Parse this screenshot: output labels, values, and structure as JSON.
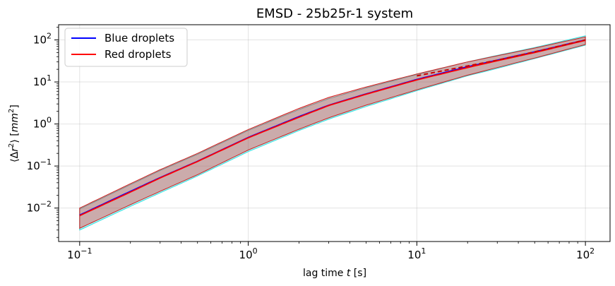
{
  "chart_data": {
    "type": "line",
    "title": "EMSD - 25b25r-1 system",
    "xlabel": "lag time t [s]",
    "ylabel": "⟨Δr²⟩ [mm²]",
    "xscale": "log",
    "yscale": "log",
    "xlim": [
      0.075,
      140
    ],
    "ylim": [
      0.0016,
      230
    ],
    "xticks": [
      {
        "value": 0.1,
        "base": "10",
        "exp": "−1"
      },
      {
        "value": 1,
        "base": "10",
        "exp": "0"
      },
      {
        "value": 10,
        "base": "10",
        "exp": "1"
      },
      {
        "value": 100,
        "base": "10",
        "exp": "2"
      }
    ],
    "yticks": [
      {
        "value": 0.01,
        "base": "10",
        "exp": "−2"
      },
      {
        "value": 0.1,
        "base": "10",
        "exp": "−1"
      },
      {
        "value": 1,
        "base": "10",
        "exp": "0"
      },
      {
        "value": 10,
        "base": "10",
        "exp": "1"
      },
      {
        "value": 100,
        "base": "10",
        "exp": "2"
      }
    ],
    "grid": true,
    "legend_position": "top-left",
    "x": [
      0.1,
      0.2,
      0.3,
      0.5,
      1,
      2,
      3,
      5,
      10,
      20,
      30,
      50,
      100
    ],
    "series": [
      {
        "name": "Blue droplets",
        "color": "#0000ff",
        "values": [
          0.0068,
          0.025,
          0.053,
          0.13,
          0.48,
          1.5,
          2.8,
          5.2,
          11.5,
          23,
          33,
          52,
          100
        ],
        "band_lower": [
          0.003,
          0.011,
          0.023,
          0.058,
          0.22,
          0.7,
          1.3,
          2.6,
          6.2,
          14,
          21,
          36,
          75
        ],
        "band_upper": [
          0.0095,
          0.036,
          0.078,
          0.19,
          0.7,
          2.2,
          4.0,
          7.2,
          15,
          30,
          43,
          66,
          125
        ],
        "band_color": "#00ffff"
      },
      {
        "name": "Red droplets",
        "color": "#ff0000",
        "values": [
          0.0066,
          0.024,
          0.052,
          0.128,
          0.47,
          1.45,
          2.75,
          5.1,
          11.2,
          22,
          32,
          50,
          98
        ],
        "band_lower": [
          0.0033,
          0.012,
          0.025,
          0.062,
          0.24,
          0.75,
          1.4,
          2.8,
          6.5,
          14.5,
          22,
          37,
          78
        ],
        "band_upper": [
          0.01,
          0.038,
          0.082,
          0.2,
          0.74,
          2.35,
          4.3,
          7.6,
          15.5,
          30,
          42,
          64,
          118
        ],
        "band_color": "#ff0000"
      }
    ],
    "fit_line": {
      "color": "#cc0000",
      "style": "dashed",
      "x": [
        10,
        20,
        30,
        50,
        100
      ],
      "values": [
        14,
        24,
        33,
        52,
        100
      ]
    }
  }
}
